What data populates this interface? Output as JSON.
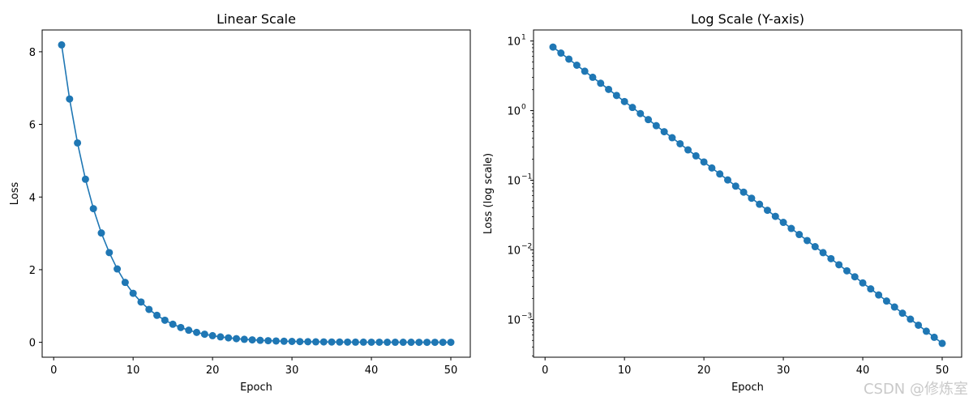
{
  "watermark": "CSDN @修炼室",
  "chart_data": [
    {
      "type": "line",
      "title": "Linear Scale",
      "xlabel": "Epoch",
      "ylabel": "Loss",
      "yscale": "linear",
      "xlim": [
        -1.45,
        52.45
      ],
      "ylim": [
        -0.41,
        8.6
      ],
      "xticks": [
        0,
        10,
        20,
        30,
        40,
        50
      ],
      "xtick_labels": [
        "0",
        "10",
        "20",
        "30",
        "40",
        "50"
      ],
      "yticks": [
        0,
        2,
        4,
        6,
        8
      ],
      "ytick_labels": [
        "0",
        "2",
        "4",
        "6",
        "8"
      ],
      "color": "#1f77b4",
      "grid": false,
      "x": [
        1,
        2,
        3,
        4,
        5,
        6,
        7,
        8,
        9,
        10,
        11,
        12,
        13,
        14,
        15,
        16,
        17,
        18,
        19,
        20,
        21,
        22,
        23,
        24,
        25,
        26,
        27,
        28,
        29,
        30,
        31,
        32,
        33,
        34,
        35,
        36,
        37,
        38,
        39,
        40,
        41,
        42,
        43,
        44,
        45,
        46,
        47,
        48,
        49,
        50
      ],
      "y": [
        8.19,
        6.7,
        5.49,
        4.49,
        3.68,
        3.01,
        2.47,
        2.02,
        1.65,
        1.35,
        1.11,
        0.907,
        0.743,
        0.608,
        0.498,
        0.408,
        0.334,
        0.273,
        0.224,
        0.183,
        0.15,
        0.123,
        0.101,
        0.0823,
        0.0674,
        0.0552,
        0.0452,
        0.037,
        0.0303,
        0.0248,
        0.0203,
        0.0166,
        0.0136,
        0.0111,
        0.00912,
        0.00747,
        0.00611,
        0.005,
        0.0041,
        0.00335,
        0.00275,
        0.00225,
        0.00184,
        0.00151,
        0.00123,
        0.00101,
        0.000828,
        0.000678,
        0.000555,
        0.000454
      ]
    },
    {
      "type": "line",
      "title": "Log Scale (Y-axis)",
      "xlabel": "Epoch",
      "ylabel": "Loss (log scale)",
      "yscale": "log",
      "xlim": [
        -1.45,
        52.45
      ],
      "ylim": [
        0.000287,
        14.4
      ],
      "xticks": [
        0,
        10,
        20,
        30,
        40,
        50
      ],
      "xtick_labels": [
        "0",
        "10",
        "20",
        "30",
        "40",
        "50"
      ],
      "yticks_major": [
        -3,
        -2,
        -1,
        0,
        1
      ],
      "ytick_labels": [
        "10",
        "10",
        "10",
        "10",
        "10"
      ],
      "ytick_exponents": [
        "−3",
        "−2",
        "−1",
        "0",
        "1"
      ],
      "color": "#1f77b4",
      "grid": false,
      "x": [
        1,
        2,
        3,
        4,
        5,
        6,
        7,
        8,
        9,
        10,
        11,
        12,
        13,
        14,
        15,
        16,
        17,
        18,
        19,
        20,
        21,
        22,
        23,
        24,
        25,
        26,
        27,
        28,
        29,
        30,
        31,
        32,
        33,
        34,
        35,
        36,
        37,
        38,
        39,
        40,
        41,
        42,
        43,
        44,
        45,
        46,
        47,
        48,
        49,
        50
      ],
      "y": [
        8.19,
        6.7,
        5.49,
        4.49,
        3.68,
        3.01,
        2.47,
        2.02,
        1.65,
        1.35,
        1.11,
        0.907,
        0.743,
        0.608,
        0.498,
        0.408,
        0.334,
        0.273,
        0.224,
        0.183,
        0.15,
        0.123,
        0.101,
        0.0823,
        0.0674,
        0.0552,
        0.0452,
        0.037,
        0.0303,
        0.0248,
        0.0203,
        0.0166,
        0.0136,
        0.0111,
        0.00912,
        0.00747,
        0.00611,
        0.005,
        0.0041,
        0.00335,
        0.00275,
        0.00225,
        0.00184,
        0.00151,
        0.00123,
        0.00101,
        0.000828,
        0.000678,
        0.000555,
        0.000454
      ]
    }
  ]
}
